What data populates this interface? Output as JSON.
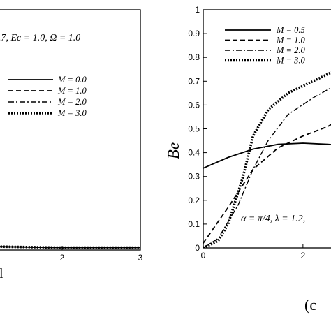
{
  "chart_data": [
    {
      "type": "line",
      "xlim": [
        0,
        3
      ],
      "x_ticks": [
        "2",
        "3"
      ],
      "xlabel_fragment": "l",
      "annotation": ".7, Ec = 1.0, Ω = 1.0",
      "legend_placement": "right",
      "series": [
        {
          "name": "M = 0.0",
          "style": "solid",
          "x": [
            0,
            0.3,
            1,
            2,
            3
          ],
          "y": [
            0.03,
            0.02,
            0.015,
            0.01,
            0.01
          ]
        },
        {
          "name": "M = 1.0",
          "style": "dashed",
          "x": [
            0,
            0.3,
            1,
            2,
            3
          ],
          "y": [
            0.03,
            0.02,
            0.015,
            0.01,
            0.01
          ]
        },
        {
          "name": "M = 2.0",
          "style": "dashdot",
          "x": [
            0,
            0.3,
            1,
            2,
            3
          ],
          "y": [
            0.03,
            0.02,
            0.015,
            0.01,
            0.01
          ]
        },
        {
          "name": "M = 3.0",
          "style": "dotted",
          "x": [
            0,
            0.3,
            1,
            2,
            3
          ],
          "y": [
            0.03,
            0.02,
            0.015,
            0.01,
            0.01
          ]
        }
      ]
    },
    {
      "type": "line",
      "ylabel": "Be",
      "xlim": [
        0,
        2.8
      ],
      "ylim": [
        0,
        1
      ],
      "x_ticks": [
        "0",
        "2"
      ],
      "y_ticks": [
        "0",
        "0.1",
        "0.2",
        "0.3",
        "0.4",
        "0.5",
        "0.6",
        "0.7",
        "0.8",
        "0.9",
        "1"
      ],
      "annotation": "α = π/4, λ = 1.2,",
      "panel_label": "(c",
      "legend_placement": "top-left",
      "series": [
        {
          "name": "M = 0.5",
          "style": "solid",
          "x": [
            0,
            0.5,
            1,
            1.5,
            2,
            2.5,
            2.8
          ],
          "y": [
            0.335,
            0.38,
            0.415,
            0.435,
            0.44,
            0.435,
            0.43
          ]
        },
        {
          "name": "M = 1.0",
          "style": "dashed",
          "x": [
            0,
            0.5,
            1,
            1.5,
            2,
            2.5,
            2.8
          ],
          "y": [
            0.02,
            0.17,
            0.33,
            0.42,
            0.47,
            0.51,
            0.55
          ]
        },
        {
          "name": "M = 2.0",
          "style": "dashdot",
          "x": [
            0,
            0.3,
            0.7,
            1,
            1.3,
            1.7,
            2.2,
            2.8
          ],
          "y": [
            0,
            0.04,
            0.18,
            0.33,
            0.45,
            0.56,
            0.63,
            0.7
          ]
        },
        {
          "name": "M = 3.0",
          "style": "dotted",
          "x": [
            0,
            0.3,
            0.5,
            0.8,
            1,
            1.3,
            1.7,
            2.2,
            2.6,
            2.8
          ],
          "y": [
            0,
            0.03,
            0.1,
            0.3,
            0.47,
            0.58,
            0.65,
            0.7,
            0.74,
            0.76
          ]
        }
      ]
    }
  ]
}
